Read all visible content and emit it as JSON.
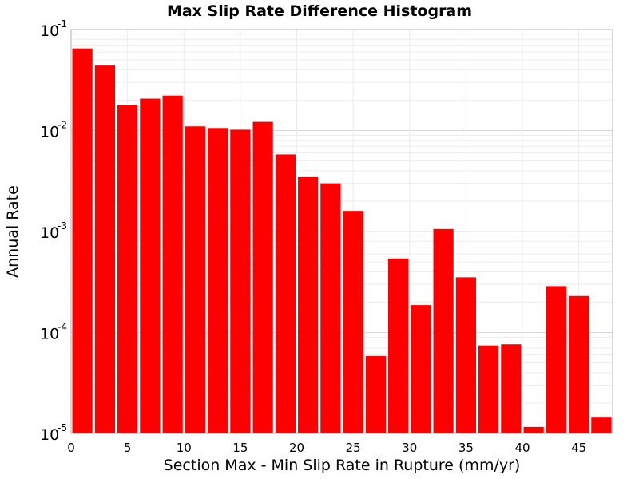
{
  "chart_data": {
    "type": "bar",
    "title": "Max Slip Rate Difference Histogram",
    "xlabel": "Section Max - Min Slip Rate in Rupture (mm/yr)",
    "ylabel": "Annual Rate",
    "xlim": [
      0,
      48
    ],
    "xticks": [
      "0",
      "5",
      "10",
      "15",
      "20",
      "25",
      "30",
      "35",
      "40",
      "45"
    ],
    "ylim": [
      1e-05,
      0.1
    ],
    "yscale": "log",
    "yticks": [
      {
        "base": "10",
        "exp": "-1"
      },
      {
        "base": "10",
        "exp": "-2"
      },
      {
        "base": "10",
        "exp": "-3"
      },
      {
        "base": "10",
        "exp": "-4"
      },
      {
        "base": "10",
        "exp": "-5"
      }
    ],
    "bin_width": 2,
    "x": [
      1,
      3,
      5,
      7,
      9,
      11,
      13,
      15,
      17,
      19,
      21,
      23,
      25,
      27,
      29,
      31,
      33,
      35,
      37,
      39,
      41,
      43,
      45,
      47
    ],
    "values": [
      0.065,
      0.044,
      0.0178,
      0.0207,
      0.0222,
      0.011,
      0.0106,
      0.0102,
      0.0122,
      0.0058,
      0.00345,
      0.003,
      0.0016,
      5.85e-05,
      0.00054,
      0.000187,
      0.00106,
      0.000352,
      7.45e-05,
      7.65e-05,
      1.16e-05,
      0.000288,
      0.00023,
      1.46e-05
    ],
    "grid": true,
    "bar_color": "#ff0000"
  }
}
